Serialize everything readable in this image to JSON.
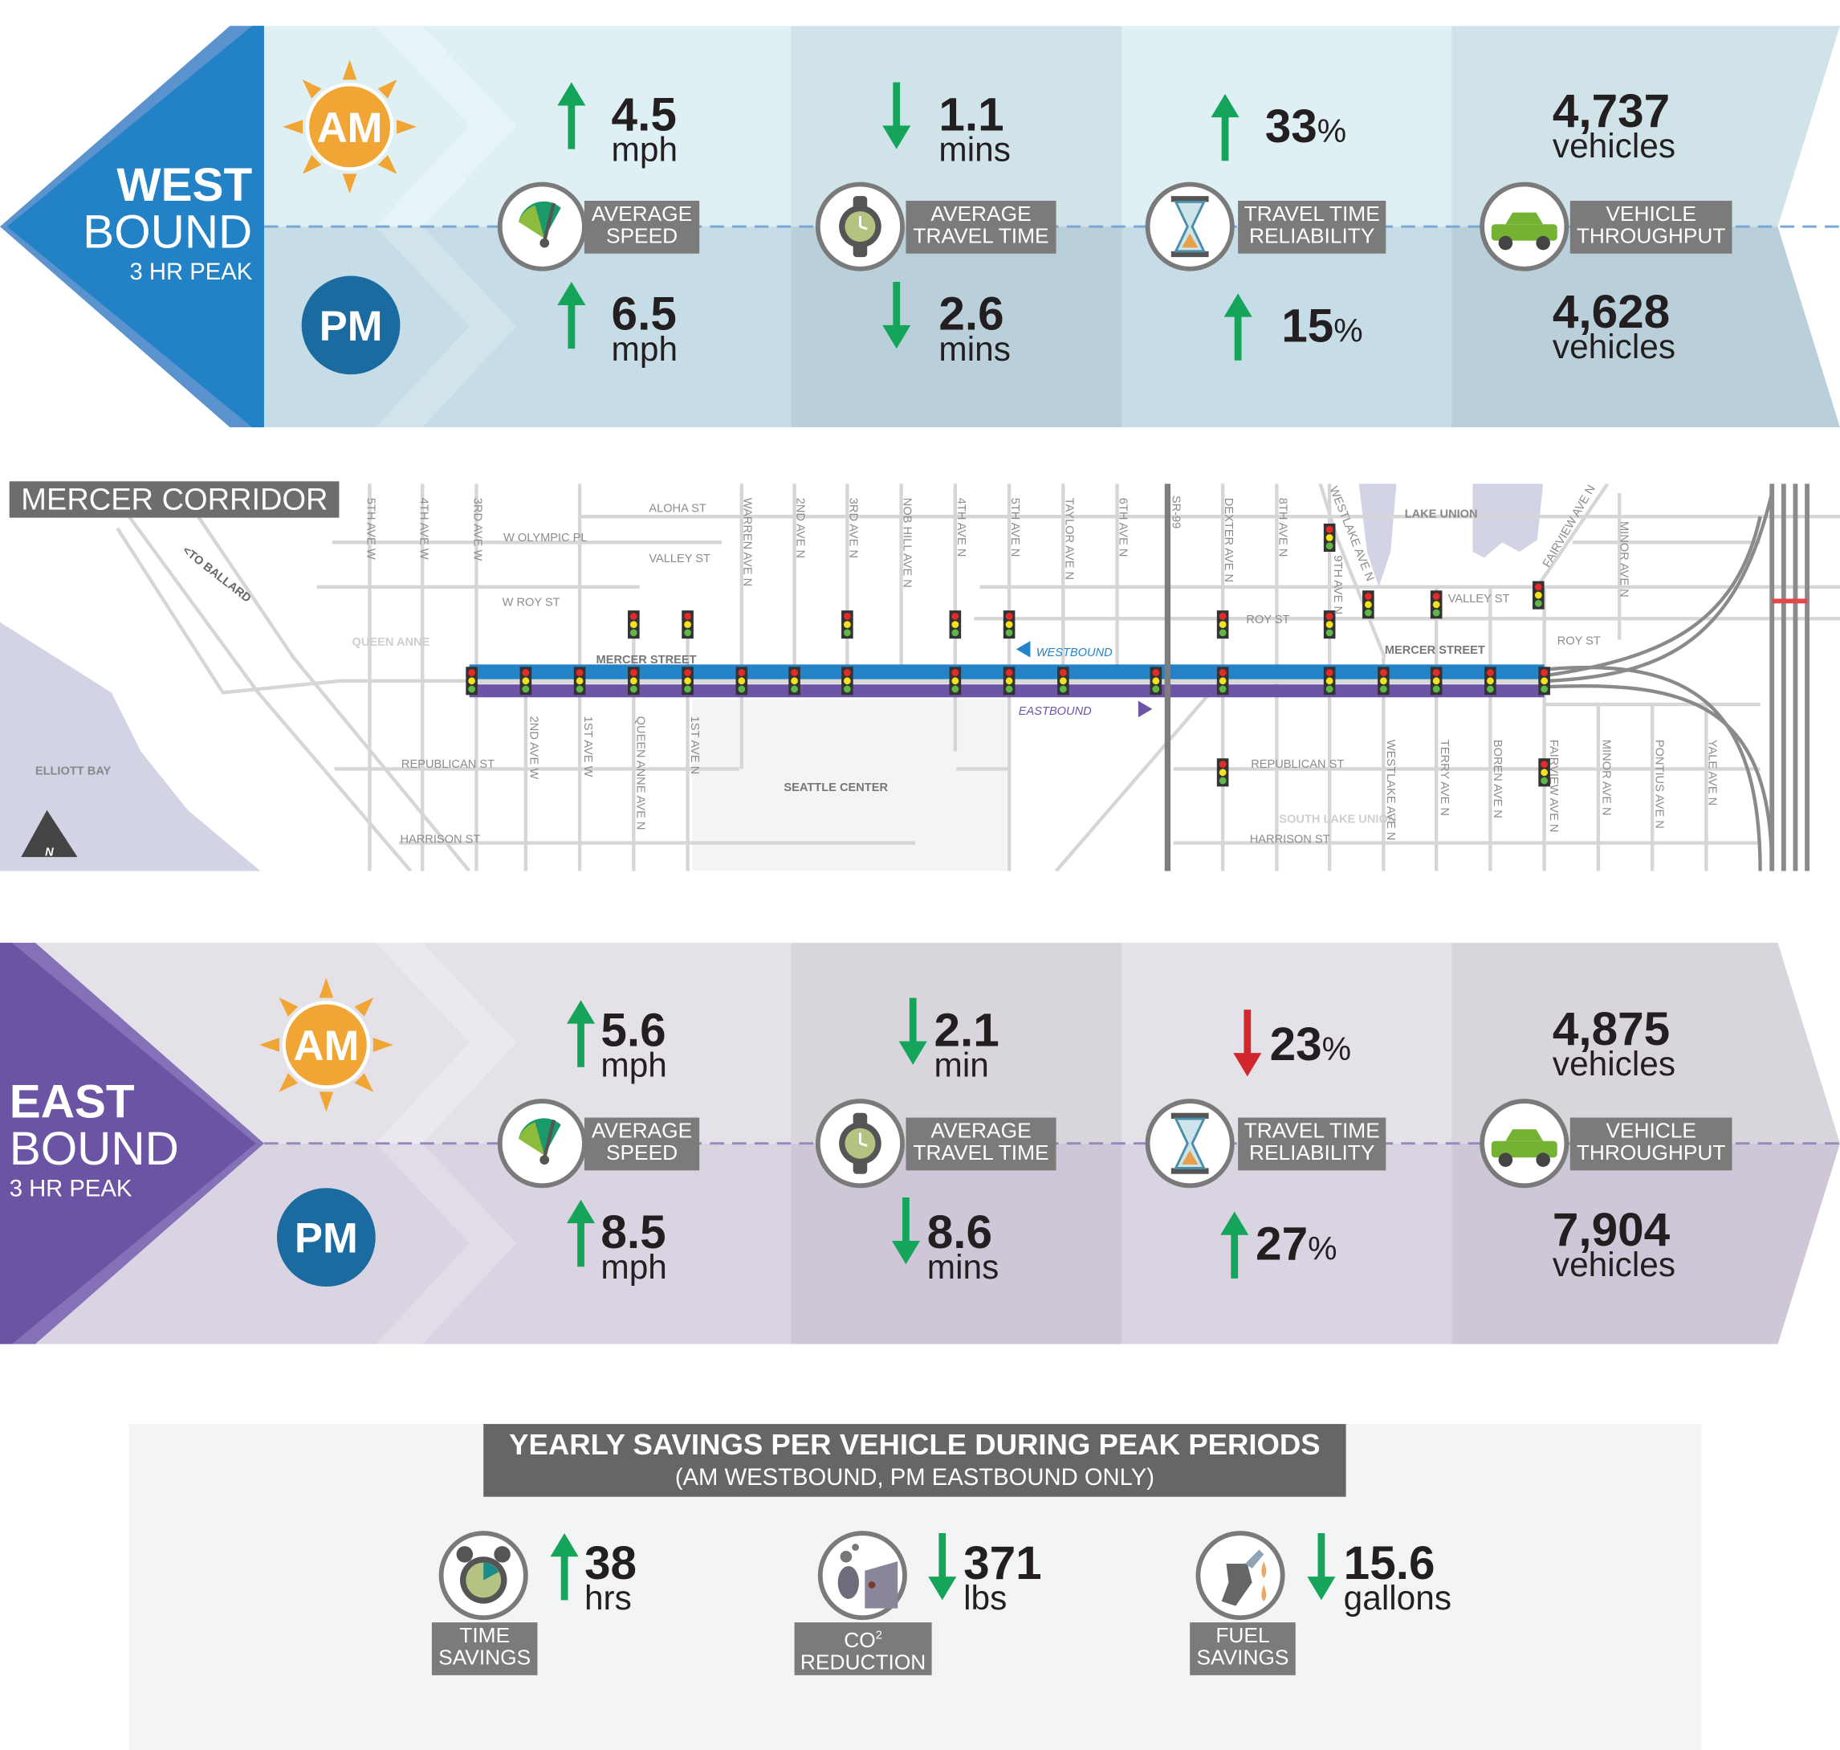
{
  "colors": {
    "westbound": "#2282c5",
    "eastbound": "#6b54a3",
    "increase_good": "#14a55a",
    "decrease_bad": "#d0262c",
    "am": "#f0a535",
    "pm": "#1b6ba0"
  },
  "westbound": {
    "title_bold": "WEST",
    "title": "BOUND",
    "subtitle": "3 HR PEAK",
    "am_label": "AM",
    "pm_label": "PM",
    "metrics": [
      {
        "label_1": "AVERAGE",
        "label_2": "SPEED",
        "icon": "speedometer-icon",
        "am": {
          "value": "4.5",
          "unit": "mph",
          "direction": "up"
        },
        "pm": {
          "value": "6.5",
          "unit": "mph",
          "direction": "up"
        }
      },
      {
        "label_1": "AVERAGE",
        "label_2": "TRAVEL TIME",
        "icon": "stopwatch-icon",
        "am": {
          "value": "1.1",
          "unit": "mins",
          "direction": "down"
        },
        "pm": {
          "value": "2.6",
          "unit": "mins",
          "direction": "down"
        }
      },
      {
        "label_1": "TRAVEL TIME",
        "label_2": "RELIABILITY",
        "icon": "hourglass-icon",
        "am": {
          "value": "33",
          "unit": "%",
          "direction": "up"
        },
        "pm": {
          "value": "15",
          "unit": "%",
          "direction": "up"
        }
      },
      {
        "label_1": "VEHICLE",
        "label_2": "THROUGHPUT",
        "icon": "car-icon",
        "am": {
          "value": "4,737",
          "unit": "vehicles"
        },
        "pm": {
          "value": "4,628",
          "unit": "vehicles"
        }
      }
    ]
  },
  "eastbound": {
    "title_bold": "EAST",
    "title": "BOUND",
    "subtitle": "3 HR PEAK",
    "am_label": "AM",
    "pm_label": "PM",
    "metrics": [
      {
        "label_1": "AVERAGE",
        "label_2": "SPEED",
        "icon": "speedometer-icon",
        "am": {
          "value": "5.6",
          "unit": "mph",
          "direction": "up"
        },
        "pm": {
          "value": "8.5",
          "unit": "mph",
          "direction": "up"
        }
      },
      {
        "label_1": "AVERAGE",
        "label_2": "TRAVEL TIME",
        "icon": "stopwatch-icon",
        "am": {
          "value": "2.1",
          "unit": "min",
          "direction": "down"
        },
        "pm": {
          "value": "8.6",
          "unit": "mins",
          "direction": "down"
        }
      },
      {
        "label_1": "TRAVEL TIME",
        "label_2": "RELIABILITY",
        "icon": "hourglass-icon",
        "am": {
          "value": "23",
          "unit": "%",
          "direction": "down"
        },
        "pm": {
          "value": "27",
          "unit": "%",
          "direction": "up"
        }
      },
      {
        "label_1": "VEHICLE",
        "label_2": "THROUGHPUT",
        "icon": "car-icon",
        "am": {
          "value": "4,875",
          "unit": "vehicles"
        },
        "pm": {
          "value": "7,904",
          "unit": "vehicles"
        }
      }
    ]
  },
  "map": {
    "title": "MERCER CORRIDOR",
    "neighborhoods": [
      "QUEEN ANNE",
      "SOUTH LAKE UNION",
      "SEATTLE CENTER",
      "ELLIOTT BAY",
      "LAKE UNION"
    ],
    "mercer_label": "MERCER STREET",
    "westbound_label": "WESTBOUND",
    "eastbound_label": "EASTBOUND",
    "to_ballard": "<TO BALLARD",
    "north": "N",
    "avenues_north": [
      "5TH AVE W",
      "4TH AVE W",
      "3RD AVE W",
      "WARREN AVE N",
      "2ND AVE N",
      "3RD AVE N",
      "NOB HILL AVE N",
      "4TH AVE N",
      "5TH AVE N",
      "TAYLOR AVE N",
      "6TH AVE N",
      "SR-99",
      "DEXTER AVE N",
      "8TH AVE N",
      "WESTLAKE AVE N",
      "9TH AVE N",
      "FAIRVIEW AVE N",
      "MINOR AVE N"
    ],
    "avenues_south": [
      "2ND AVE W",
      "1ST AVE W",
      "QUEEN ANNE AVE N",
      "1ST AVE N",
      "WESTLAKE AVE N",
      "TERRY AVE N",
      "BOREN AVE N",
      "FAIRVIEW AVE N",
      "MINOR AVE N",
      "PONTIUS AVE N",
      "YALE AVE N"
    ],
    "streets": [
      "ALOHA ST",
      "W OLYMPIC PL",
      "VALLEY ST",
      "W ROY ST",
      "REPUBLICAN ST",
      "HARRISON ST",
      "ROY ST",
      "VALLEY ST",
      "ROY ST",
      "REPUBLICAN ST",
      "HARRISON ST"
    ]
  },
  "savings": {
    "title": "YEARLY SAVINGS PER VEHICLE DURING PEAK PERIODS",
    "subtitle": "(AM WESTBOUND, PM EASTBOUND ONLY)",
    "items": [
      {
        "label_1": "TIME",
        "label_2": "SAVINGS",
        "value": "38",
        "unit": "hrs",
        "direction": "up",
        "icon": "alarm-clock-icon"
      },
      {
        "label_1": "CO",
        "label_sup": "2",
        "label_2": "REDUCTION",
        "value": "371",
        "unit": "lbs",
        "direction": "down",
        "icon": "smokestack-icon"
      },
      {
        "label_1": "FUEL",
        "label_2": "SAVINGS",
        "value": "15.6",
        "unit": "gallons",
        "direction": "down",
        "icon": "fuel-nozzle-icon"
      }
    ]
  }
}
